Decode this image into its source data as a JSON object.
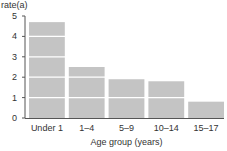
{
  "chart_data": {
    "type": "bar",
    "y_label": "rate(a)",
    "x_label": "Age group (years)",
    "categories": [
      "Under 1",
      "1–4",
      "5–9",
      "10–14",
      "15–17"
    ],
    "values": [
      4.7,
      2.5,
      1.9,
      1.8,
      0.8
    ],
    "color": "#c4c4c4",
    "ylim": [
      0,
      5
    ],
    "yticks": [
      0,
      1,
      2,
      3,
      4,
      5
    ],
    "grid": true
  }
}
